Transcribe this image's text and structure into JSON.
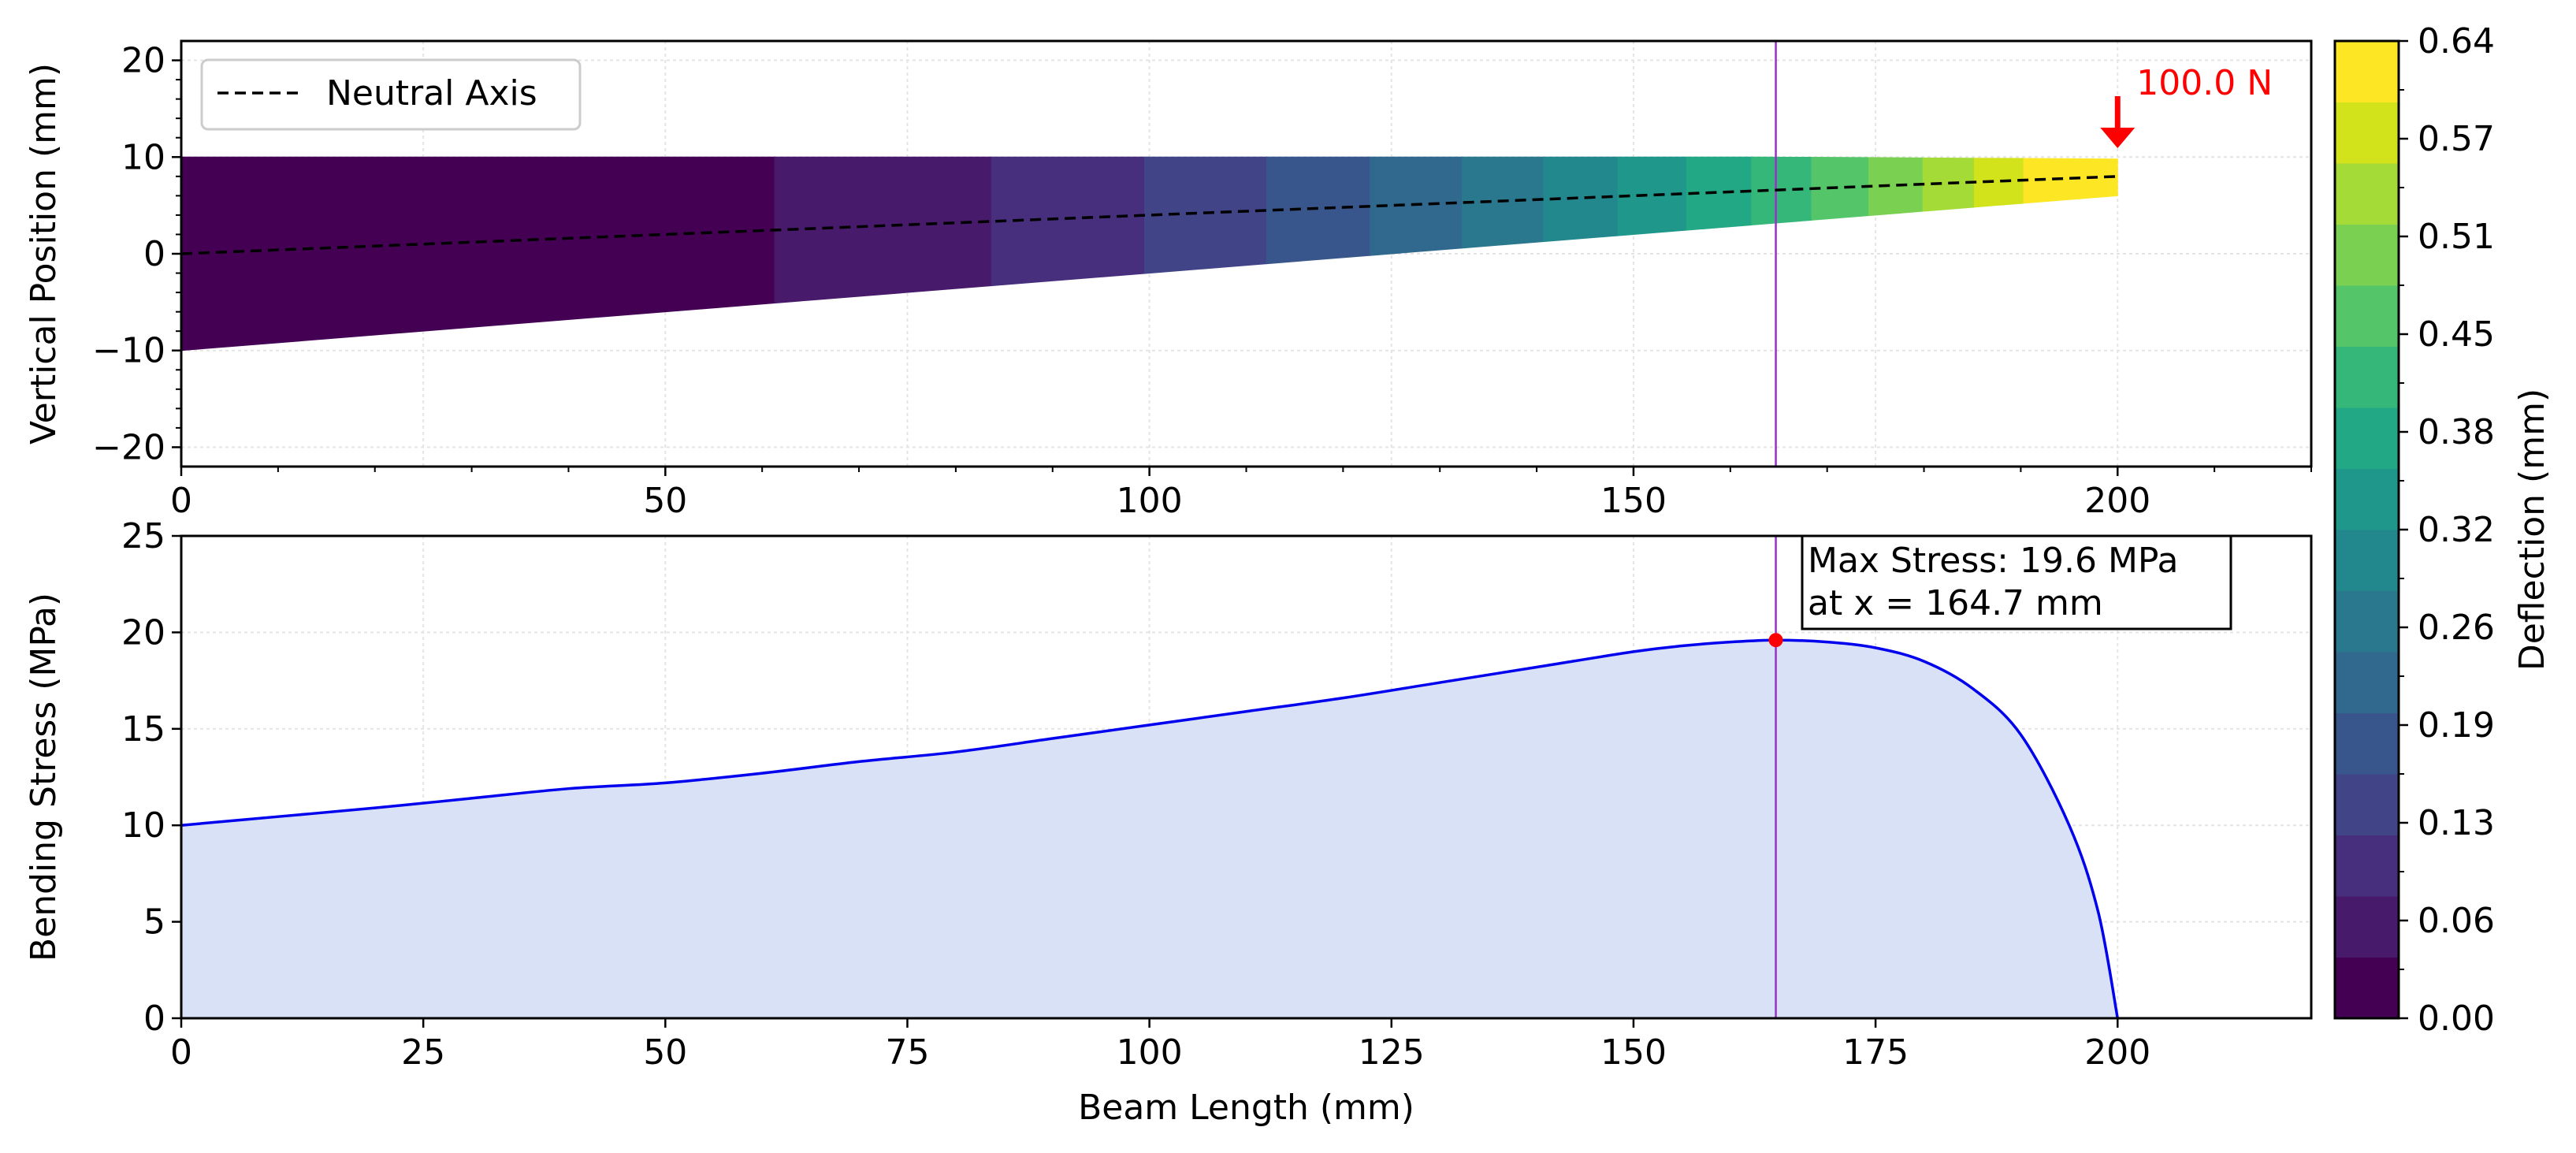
{
  "chart_data": [
    {
      "type": "heatmap",
      "panel": "beam-shape",
      "ylabel": "Vertical Position (mm)",
      "xlim": [
        0,
        220
      ],
      "ylim": [
        -22,
        22
      ],
      "xticks": [
        0,
        50,
        100,
        150,
        200
      ],
      "yticks": [
        -20,
        -10,
        0,
        10,
        20
      ],
      "xtick_labels": [
        "0",
        "50",
        "100",
        "150",
        "200"
      ],
      "ytick_labels": [
        "−20",
        "−10",
        "0",
        "10",
        "20"
      ],
      "grid": true,
      "legend": {
        "placement": "top-left",
        "entries": [
          "Neutral Axis"
        ]
      },
      "beam": {
        "length": 200,
        "top_edge": {
          "x": [
            0,
            200
          ],
          "y": [
            10,
            10
          ]
        },
        "bottom_edge": {
          "x": [
            0,
            200
          ],
          "y": [
            -10,
            6
          ]
        },
        "neutral_axis": {
          "x": [
            0,
            200
          ],
          "y": [
            0,
            8
          ]
        }
      },
      "deflection_color_bins": [
        {
          "x": [
            0,
            61.3
          ],
          "bin": 0
        },
        {
          "x": [
            61.3,
            83.7
          ],
          "bin": 1
        },
        {
          "x": [
            83.7,
            99.5
          ],
          "bin": 2
        },
        {
          "x": [
            99.5,
            112.1
          ],
          "bin": 3
        },
        {
          "x": [
            112.1,
            122.8
          ],
          "bin": 4
        },
        {
          "x": [
            122.8,
            132.3
          ],
          "bin": 5
        },
        {
          "x": [
            132.3,
            140.7
          ],
          "bin": 6
        },
        {
          "x": [
            140.7,
            148.4
          ],
          "bin": 7
        },
        {
          "x": [
            148.4,
            155.5
          ],
          "bin": 8
        },
        {
          "x": [
            155.5,
            162.2
          ],
          "bin": 9
        },
        {
          "x": [
            162.2,
            168.4
          ],
          "bin": 10
        },
        {
          "x": [
            168.4,
            174.3
          ],
          "bin": 11
        },
        {
          "x": [
            174.3,
            179.9
          ],
          "bin": 12
        },
        {
          "x": [
            179.9,
            185.2
          ],
          "bin": 13
        },
        {
          "x": [
            185.2,
            190.3
          ],
          "bin": 14
        },
        {
          "x": [
            190.3,
            195.2
          ],
          "bin": 15
        },
        {
          "x": [
            195.2,
            200
          ],
          "bin": 16
        }
      ],
      "load": {
        "x": 200,
        "label": "100.0 N",
        "color": "#ff0000"
      },
      "marker_line_x": 164.7,
      "marker_line_color": "#9b30c8"
    },
    {
      "type": "area",
      "panel": "bending-stress",
      "xlabel": "Beam Length (mm)",
      "ylabel": "Bending Stress (MPa)",
      "xlim": [
        0,
        220
      ],
      "ylim": [
        0,
        25
      ],
      "xticks": [
        0,
        25,
        50,
        75,
        100,
        125,
        150,
        175,
        200
      ],
      "yticks": [
        0,
        5,
        10,
        15,
        20,
        25
      ],
      "grid": true,
      "series": [
        {
          "x": [
            0,
            10,
            20,
            30,
            40,
            50,
            60,
            70,
            80,
            90,
            100,
            110,
            120,
            130,
            140,
            150,
            155,
            160,
            164.7,
            170,
            175,
            180,
            185,
            190,
            195,
            198,
            200
          ],
          "values": [
            10.0,
            10.45,
            10.9,
            11.4,
            11.9,
            12.2,
            12.7,
            13.3,
            13.8,
            14.5,
            15.2,
            15.9,
            16.6,
            17.4,
            18.2,
            19.0,
            19.3,
            19.5,
            19.6,
            19.5,
            19.2,
            18.5,
            17.1,
            14.7,
            10.0,
            5.5,
            0.0
          ]
        }
      ],
      "line_color": "#0000ee",
      "fill_color": "#d9e1f6",
      "max_point": {
        "x": 164.7,
        "y": 19.6,
        "color": "#ff0000"
      },
      "annotation": {
        "line1": "Max Stress: 19.6 MPa",
        "line2": "at x = 164.7 mm"
      },
      "marker_line_x": 164.7,
      "marker_line_color": "#9b30c8"
    },
    {
      "type": "colorbar",
      "label": "Deflection (mm)",
      "range": [
        0,
        0.64
      ],
      "tick_labels": [
        "0.00",
        "0.06",
        "0.13",
        "0.19",
        "0.26",
        "0.32",
        "0.38",
        "0.45",
        "0.51",
        "0.57",
        "0.64"
      ],
      "colors": [
        "#440154",
        "#481a6c",
        "#472f7d",
        "#414487",
        "#39568c",
        "#31688e",
        "#2a788e",
        "#23888e",
        "#1f988b",
        "#22a884",
        "#35b779",
        "#54c568",
        "#7ad151",
        "#a5db36",
        "#d2e21b",
        "#fde725"
      ]
    }
  ]
}
